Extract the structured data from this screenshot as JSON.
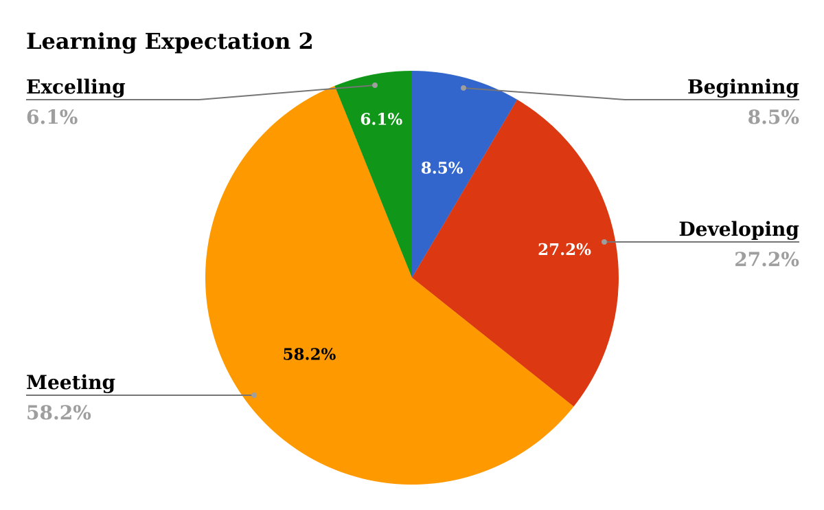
{
  "chart_data": {
    "type": "pie",
    "title": "Learning Expectation 2",
    "start_angle_deg": 0,
    "direction": "clockwise",
    "legend": "callouts",
    "slices": [
      {
        "name": "Beginning",
        "value": 8.5,
        "label": "8.5%",
        "color": "#3366cc",
        "label_color": "#ffffff"
      },
      {
        "name": "Developing",
        "value": 27.2,
        "label": "27.2%",
        "color": "#dc3912",
        "label_color": "#ffffff"
      },
      {
        "name": "Meeting",
        "value": 58.2,
        "label": "58.2%",
        "color": "#ff9900",
        "label_color": "#000000"
      },
      {
        "name": "Excelling",
        "value": 6.1,
        "label": "6.1%",
        "color": "#109618",
        "label_color": "#ffffff"
      }
    ],
    "callout_line_color": "#757575",
    "callout_dot_color": "#9e9e9e",
    "callout_value_color": "#9e9e9e"
  }
}
